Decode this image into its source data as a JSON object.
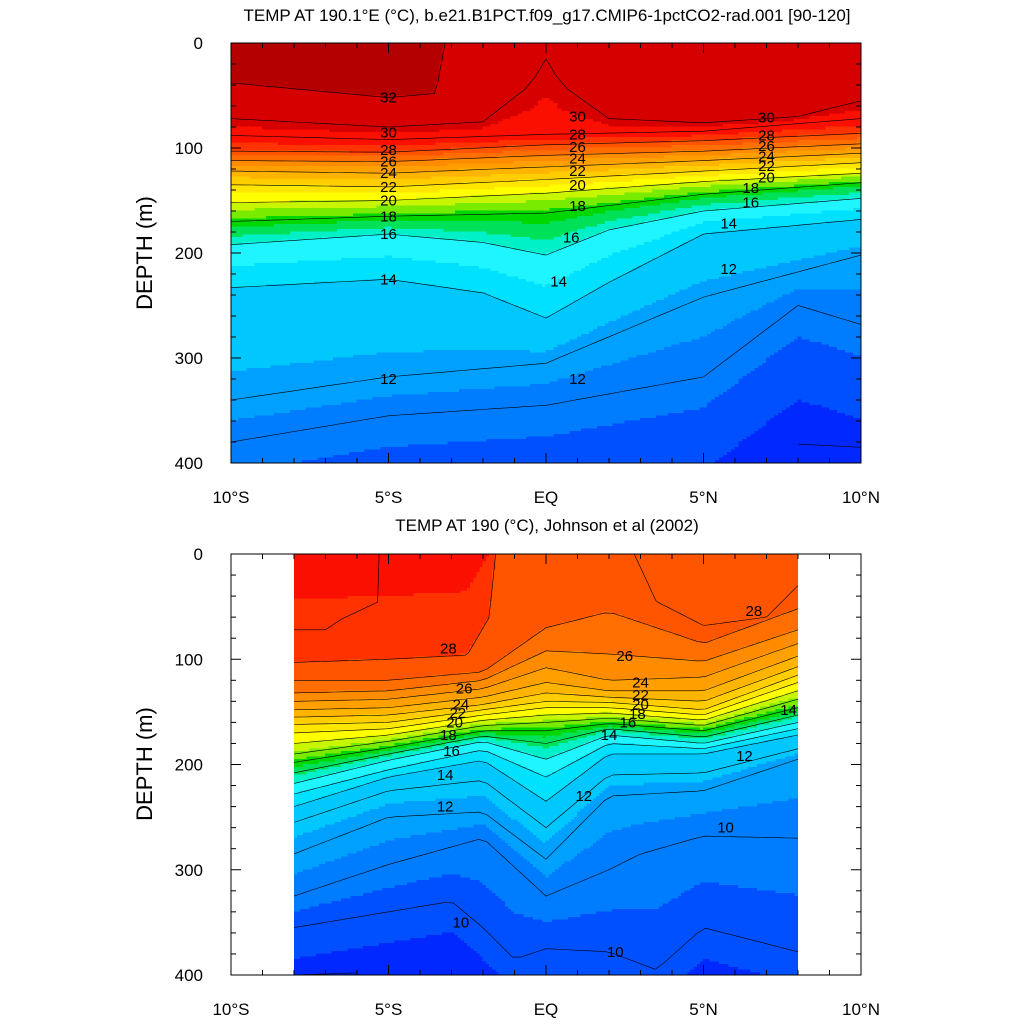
{
  "chart_data": [
    {
      "type": "contour",
      "title": "TEMP AT 190.1°E (°C), b.e21.B1PCT.f09_g17.CMIP6-1pctCO2-rad.001 [90-120]",
      "ylabel": "DEPTH (m)",
      "xlabel": "",
      "xlim": [
        -10,
        10
      ],
      "ylim": [
        400,
        0
      ],
      "x_data_range": [
        -10,
        10
      ],
      "xticks": [
        {
          "value": -10,
          "label": "10°S"
        },
        {
          "value": -5,
          "label": "5°S"
        },
        {
          "value": 0,
          "label": "EQ"
        },
        {
          "value": 5,
          "label": "5°N"
        },
        {
          "value": 10,
          "label": "10°N"
        }
      ],
      "yticks": [
        0,
        100,
        200,
        300,
        400
      ],
      "contour_interval": 1,
      "isotherms": [
        {
          "level": 32,
          "x": [
            -10,
            -5,
            -3.5,
            -3.2
          ],
          "depth": [
            38,
            52,
            48,
            0
          ]
        },
        {
          "level": 31,
          "x": [
            -10,
            -5,
            -2,
            -0.5,
            0,
            0.5,
            2,
            5,
            8,
            10
          ],
          "depth": [
            72,
            80,
            75,
            40,
            15,
            40,
            72,
            76,
            70,
            55
          ]
        },
        {
          "level": 30,
          "x": [
            -10,
            -5,
            0,
            5,
            10
          ],
          "depth": [
            88,
            92,
            87,
            84,
            72
          ]
        },
        {
          "level": 28,
          "x": [
            -10,
            -5,
            0,
            5,
            10
          ],
          "depth": [
            103,
            104,
            97,
            93,
            86
          ]
        },
        {
          "level": 26,
          "x": [
            -10,
            -5,
            0,
            5,
            10
          ],
          "depth": [
            112,
            113,
            107,
            103,
            96
          ]
        },
        {
          "level": 24,
          "x": [
            -10,
            -5,
            0,
            5,
            10
          ],
          "depth": [
            122,
            124,
            118,
            112,
            105
          ]
        },
        {
          "level": 22,
          "x": [
            -10,
            -5,
            0,
            5,
            10
          ],
          "depth": [
            135,
            137,
            130,
            122,
            114
          ]
        },
        {
          "level": 20,
          "x": [
            -10,
            -5,
            0,
            5,
            10
          ],
          "depth": [
            152,
            150,
            143,
            132,
            124
          ]
        },
        {
          "level": 18,
          "x": [
            -10,
            -5,
            0,
            5,
            10
          ],
          "depth": [
            170,
            165,
            162,
            144,
            133
          ]
        },
        {
          "level": 16,
          "x": [
            -10,
            -5,
            -2,
            0,
            2,
            5,
            10
          ],
          "depth": [
            192,
            182,
            190,
            202,
            178,
            160,
            148
          ]
        },
        {
          "level": 14,
          "x": [
            -10,
            -5,
            -2,
            0,
            2,
            5,
            10
          ],
          "depth": [
            233,
            225,
            238,
            262,
            228,
            182,
            168
          ]
        },
        {
          "level": 12,
          "x": [
            -10,
            -5,
            0,
            5,
            10
          ],
          "depth": [
            340,
            318,
            305,
            242,
            202
          ]
        },
        {
          "level": 11,
          "x": [
            -10,
            -5,
            0,
            5,
            8,
            10
          ],
          "depth": [
            380,
            355,
            345,
            318,
            250,
            268
          ]
        },
        {
          "level": 10,
          "x": [
            8,
            10
          ],
          "depth": [
            382,
            385
          ]
        }
      ],
      "contour_labels": [
        {
          "text": "32",
          "x": -5,
          "depth": 52
        },
        {
          "text": "30",
          "x": -5,
          "depth": 85
        },
        {
          "text": "28",
          "x": -5,
          "depth": 102
        },
        {
          "text": "26",
          "x": -5,
          "depth": 113
        },
        {
          "text": "24",
          "x": -5,
          "depth": 124
        },
        {
          "text": "22",
          "x": -5,
          "depth": 137
        },
        {
          "text": "20",
          "x": -5,
          "depth": 150
        },
        {
          "text": "18",
          "x": -5,
          "depth": 165
        },
        {
          "text": "16",
          "x": -5,
          "depth": 182
        },
        {
          "text": "14",
          "x": -5,
          "depth": 225
        },
        {
          "text": "12",
          "x": -5,
          "depth": 320
        },
        {
          "text": "30",
          "x": 1,
          "depth": 70
        },
        {
          "text": "28",
          "x": 1,
          "depth": 87
        },
        {
          "text": "26",
          "x": 1,
          "depth": 99
        },
        {
          "text": "24",
          "x": 1,
          "depth": 110
        },
        {
          "text": "22",
          "x": 1,
          "depth": 122
        },
        {
          "text": "20",
          "x": 1,
          "depth": 135
        },
        {
          "text": "18",
          "x": 1,
          "depth": 155
        },
        {
          "text": "16",
          "x": 0.8,
          "depth": 185
        },
        {
          "text": "14",
          "x": 0.4,
          "depth": 227
        },
        {
          "text": "12",
          "x": 1,
          "depth": 320
        },
        {
          "text": "30",
          "x": 7,
          "depth": 71
        },
        {
          "text": "28",
          "x": 7,
          "depth": 88
        },
        {
          "text": "26",
          "x": 7,
          "depth": 98
        },
        {
          "text": "24",
          "x": 7,
          "depth": 108
        },
        {
          "text": "22",
          "x": 7,
          "depth": 117
        },
        {
          "text": "20",
          "x": 7,
          "depth": 128
        },
        {
          "text": "18",
          "x": 6.5,
          "depth": 138
        },
        {
          "text": "16",
          "x": 6.5,
          "depth": 152
        },
        {
          "text": "14",
          "x": 5.8,
          "depth": 172
        },
        {
          "text": "12",
          "x": 5.8,
          "depth": 215
        }
      ]
    },
    {
      "type": "contour",
      "title": "TEMP AT 190 (°C), Johnson et al (2002)",
      "ylabel": "DEPTH (m)",
      "xlabel": "",
      "xlim": [
        -10,
        10
      ],
      "ylim": [
        400,
        0
      ],
      "x_data_range": [
        -8,
        8
      ],
      "xticks": [
        {
          "value": -10,
          "label": "10°S"
        },
        {
          "value": -5,
          "label": "5°S"
        },
        {
          "value": 0,
          "label": "EQ"
        },
        {
          "value": 5,
          "label": "5°N"
        },
        {
          "value": 10,
          "label": "10°N"
        }
      ],
      "yticks": [
        0,
        100,
        200,
        300,
        400
      ],
      "contour_interval": 1,
      "isotherms": [
        {
          "level": 29,
          "x": [
            -8,
            -7,
            -6.5,
            -5.3,
            -5.3
          ],
          "depth": [
            72,
            72,
            62,
            45,
            0
          ]
        },
        {
          "level": 28,
          "x": [
            -8,
            -5,
            -2.5,
            -1.8,
            -1.6
          ],
          "depth": [
            103,
            100,
            96,
            60,
            0
          ]
        },
        {
          "level": 28,
          "x": [
            2.8,
            3.5,
            5,
            7,
            8
          ],
          "depth": [
            0,
            45,
            68,
            60,
            30
          ]
        },
        {
          "level": 27,
          "x": [
            -8,
            -5,
            -2,
            0,
            2,
            5,
            8
          ],
          "depth": [
            120,
            120,
            112,
            70,
            55,
            85,
            52
          ]
        },
        {
          "level": 26,
          "x": [
            -8,
            -5,
            -2,
            0,
            2,
            5,
            8
          ],
          "depth": [
            132,
            130,
            120,
            92,
            95,
            102,
            72
          ]
        },
        {
          "level": 25,
          "x": [
            -8,
            -5,
            -2,
            0,
            2,
            5,
            8
          ],
          "depth": [
            140,
            138,
            128,
            108,
            120,
            117,
            85
          ]
        },
        {
          "level": 24,
          "x": [
            -8,
            -5,
            -2,
            0,
            2,
            5,
            8
          ],
          "depth": [
            148,
            146,
            136,
            122,
            130,
            130,
            97
          ]
        },
        {
          "level": 23,
          "x": [
            -8,
            -5,
            -2,
            0,
            2,
            5,
            8
          ],
          "depth": [
            155,
            153,
            143,
            132,
            136,
            140,
            107
          ]
        },
        {
          "level": 22,
          "x": [
            -8,
            -5,
            -2,
            0,
            2,
            5,
            8
          ],
          "depth": [
            162,
            160,
            148,
            140,
            141,
            148,
            115
          ]
        },
        {
          "level": 21,
          "x": [
            -8,
            -5,
            -2,
            0,
            2,
            5,
            8
          ],
          "depth": [
            170,
            166,
            153,
            146,
            146,
            153,
            122
          ]
        },
        {
          "level": 20,
          "x": [
            -8,
            -5,
            -2,
            0,
            2,
            5,
            8
          ],
          "depth": [
            180,
            172,
            158,
            153,
            151,
            158,
            130
          ]
        },
        {
          "level": 19,
          "x": [
            -8,
            -5,
            -2,
            0,
            2,
            5,
            8
          ],
          "depth": [
            190,
            178,
            163,
            160,
            156,
            163,
            138
          ]
        },
        {
          "level": 18,
          "x": [
            -8,
            -5,
            -2,
            0,
            2,
            5,
            8
          ],
          "depth": [
            198,
            184,
            168,
            168,
            161,
            168,
            146
          ]
        },
        {
          "level": 17,
          "x": [
            -8,
            -5,
            -2,
            0,
            2,
            5,
            8
          ],
          "depth": [
            208,
            190,
            173,
            180,
            166,
            174,
            153
          ]
        },
        {
          "level": 16,
          "x": [
            -8,
            -5,
            -2,
            0,
            2,
            5,
            8
          ],
          "depth": [
            218,
            196,
            178,
            195,
            172,
            180,
            160
          ]
        },
        {
          "level": 15,
          "x": [
            -8,
            -5,
            -2,
            0,
            2,
            5,
            8
          ],
          "depth": [
            228,
            205,
            186,
            212,
            180,
            185,
            166
          ]
        },
        {
          "level": 14,
          "x": [
            -8,
            -5,
            -2,
            0,
            2,
            5,
            8
          ],
          "depth": [
            240,
            212,
            196,
            235,
            190,
            190,
            172
          ]
        },
        {
          "level": 13,
          "x": [
            -8,
            -5,
            -2,
            0,
            2,
            5,
            8
          ],
          "depth": [
            255,
            225,
            215,
            260,
            210,
            208,
            185
          ]
        },
        {
          "level": 12,
          "x": [
            -8,
            -5,
            -2,
            0,
            2,
            5,
            8
          ],
          "depth": [
            285,
            250,
            245,
            290,
            230,
            225,
            195
          ]
        },
        {
          "level": 11,
          "x": [
            -8,
            -5,
            -2,
            0,
            2,
            3,
            5,
            8
          ],
          "depth": [
            325,
            295,
            270,
            325,
            300,
            285,
            268,
            270
          ]
        },
        {
          "level": 10,
          "x": [
            -8,
            -5,
            -3,
            -2,
            -1,
            0,
            2,
            3.5,
            5,
            8
          ],
          "depth": [
            355,
            340,
            330,
            355,
            385,
            375,
            378,
            395,
            355,
            378
          ]
        },
        {
          "level": 9,
          "x": [
            -8,
            -6
          ],
          "depth": [
            400,
            398
          ]
        }
      ],
      "contour_labels": [
        {
          "text": "28",
          "x": -3.1,
          "depth": 90
        },
        {
          "text": "28",
          "x": 6.6,
          "depth": 54
        },
        {
          "text": "26",
          "x": -2.6,
          "depth": 128
        },
        {
          "text": "24",
          "x": -2.7,
          "depth": 143
        },
        {
          "text": "22",
          "x": -2.8,
          "depth": 151
        },
        {
          "text": "20",
          "x": -2.9,
          "depth": 160
        },
        {
          "text": "18",
          "x": -3.1,
          "depth": 172
        },
        {
          "text": "16",
          "x": -3.0,
          "depth": 187
        },
        {
          "text": "14",
          "x": -3.2,
          "depth": 210
        },
        {
          "text": "12",
          "x": -3.2,
          "depth": 240
        },
        {
          "text": "10",
          "x": -2.7,
          "depth": 350
        },
        {
          "text": "26",
          "x": 2.5,
          "depth": 97
        },
        {
          "text": "24",
          "x": 3.0,
          "depth": 122
        },
        {
          "text": "22",
          "x": 3.0,
          "depth": 134
        },
        {
          "text": "20",
          "x": 3.0,
          "depth": 143
        },
        {
          "text": "18",
          "x": 2.9,
          "depth": 152
        },
        {
          "text": "16",
          "x": 2.6,
          "depth": 160
        },
        {
          "text": "14",
          "x": 2.0,
          "depth": 172
        },
        {
          "text": "12",
          "x": 1.2,
          "depth": 230
        },
        {
          "text": "10",
          "x": 2.2,
          "depth": 378
        },
        {
          "text": "12",
          "x": 6.3,
          "depth": 192
        },
        {
          "text": "14",
          "x": 7.7,
          "depth": 148
        },
        {
          "text": "10",
          "x": 5.7,
          "depth": 260
        }
      ]
    }
  ]
}
